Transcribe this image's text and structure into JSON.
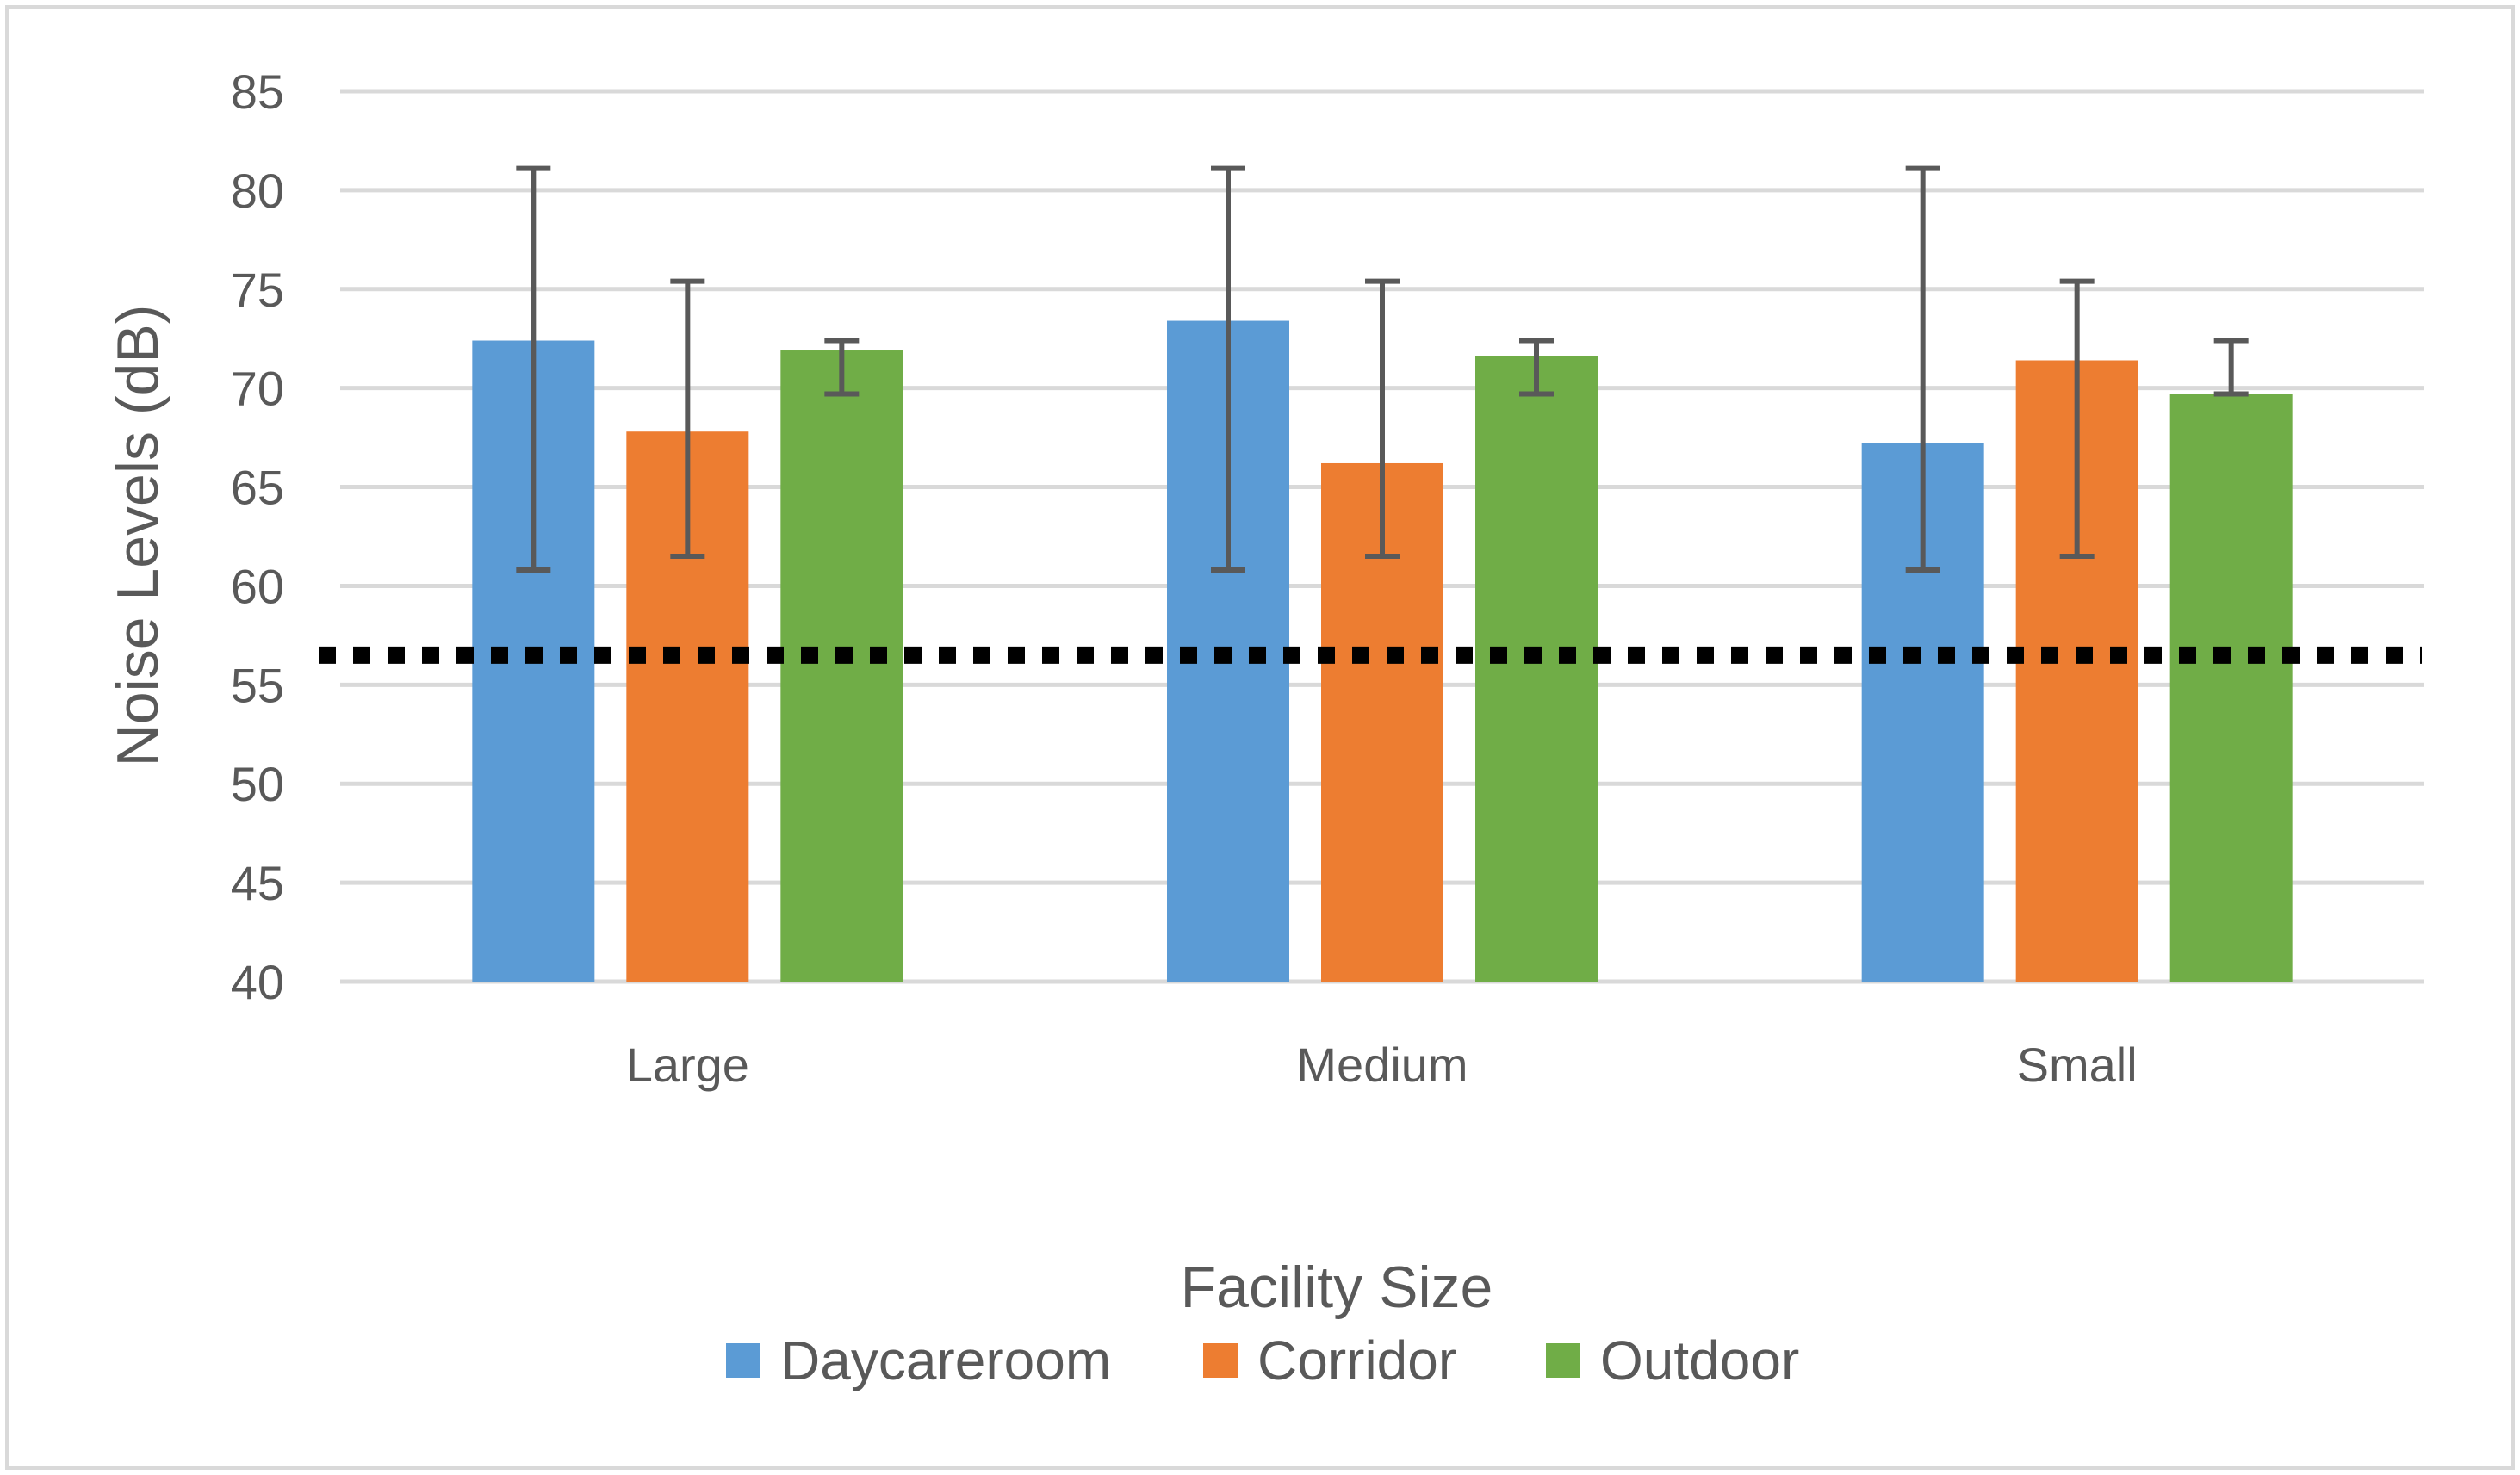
{
  "chart_data": {
    "type": "bar",
    "title": "",
    "xlabel": "Facility Size",
    "ylabel": "Noise Levels (dB)",
    "ylim": [
      40,
      85
    ],
    "yticks": [
      40,
      45,
      50,
      55,
      60,
      65,
      70,
      75,
      80,
      85
    ],
    "grid": true,
    "legend_position": "bottom",
    "categories": [
      "Large",
      "Medium",
      "Small"
    ],
    "series": [
      {
        "name": "Daycareroom",
        "color": "#5B9BD5",
        "values": [
          72.4,
          73.4,
          67.2
        ],
        "error_low": [
          60.8,
          60.8,
          60.8
        ],
        "error_high": [
          81.1,
          81.1,
          81.1
        ]
      },
      {
        "name": "Corridor",
        "color": "#ED7D31",
        "values": [
          67.8,
          66.2,
          71.4
        ],
        "error_low": [
          61.5,
          61.5,
          61.5
        ],
        "error_high": [
          75.4,
          75.4,
          75.4
        ]
      },
      {
        "name": "Outdoor",
        "color": "#70AD47",
        "values": [
          71.9,
          71.6,
          69.7
        ],
        "error_low": [
          69.7,
          69.7,
          69.7
        ],
        "error_high": [
          72.4,
          72.4,
          72.4
        ]
      }
    ],
    "reference_line": {
      "value": 56.5,
      "style": "dotted",
      "color": "#000000"
    }
  }
}
